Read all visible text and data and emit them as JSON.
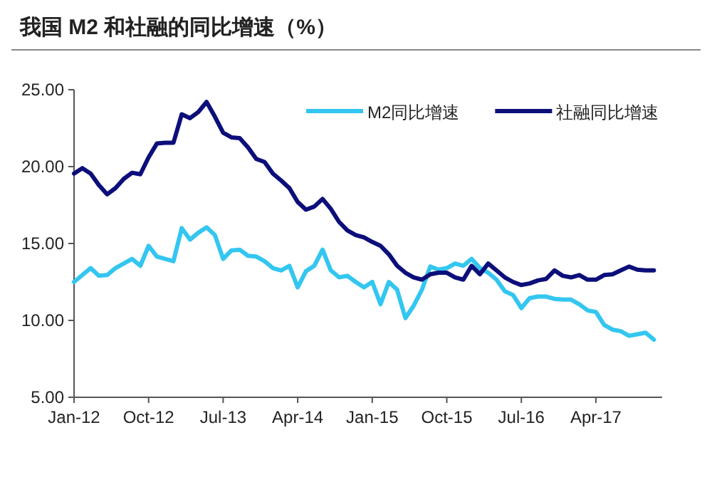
{
  "chart_data": {
    "type": "line",
    "title": "我国 M2 和社融的同比增速（%）",
    "legend": "top right",
    "grid": false,
    "x": [
      "2012-01",
      "2012-02",
      "2012-03",
      "2012-04",
      "2012-05",
      "2012-06",
      "2012-07",
      "2012-08",
      "2012-09",
      "2012-10",
      "2012-11",
      "2012-12",
      "2013-01",
      "2013-02",
      "2013-03",
      "2013-04",
      "2013-05",
      "2013-06",
      "2013-07",
      "2013-08",
      "2013-09",
      "2013-10",
      "2013-11",
      "2013-12",
      "2014-01",
      "2014-02",
      "2014-03",
      "2014-04",
      "2014-05",
      "2014-06",
      "2014-07",
      "2014-08",
      "2014-09",
      "2014-10",
      "2014-11",
      "2014-12",
      "2015-01",
      "2015-02",
      "2015-03",
      "2015-04",
      "2015-05",
      "2015-06",
      "2015-07",
      "2015-08",
      "2015-09",
      "2015-10",
      "2015-11",
      "2015-12",
      "2016-01",
      "2016-02",
      "2016-03",
      "2016-04",
      "2016-05",
      "2016-06",
      "2016-07",
      "2016-08",
      "2016-09",
      "2016-10",
      "2016-11",
      "2016-12",
      "2017-01",
      "2017-02",
      "2017-03",
      "2017-04",
      "2017-05",
      "2017-06",
      "2017-07",
      "2017-08",
      "2017-09",
      "2017-10",
      "2017-11"
    ],
    "series": [
      {
        "name": "M2同比增速",
        "color": "#33c6f0",
        "values": [
          12.5,
          12.95,
          13.4,
          12.9,
          12.95,
          13.4,
          13.7,
          14.0,
          13.55,
          14.85,
          14.15,
          14.0,
          13.85,
          16.0,
          15.25,
          15.7,
          16.05,
          15.55,
          14.0,
          14.55,
          14.6,
          14.2,
          14.15,
          13.85,
          13.4,
          13.25,
          13.55,
          12.15,
          13.2,
          13.55,
          14.6,
          13.25,
          12.8,
          12.9,
          12.5,
          12.15,
          12.5,
          11.05,
          12.5,
          12.0,
          10.15,
          10.95,
          12.0,
          13.5,
          13.3,
          13.4,
          13.7,
          13.55,
          14.0,
          13.4,
          13.1,
          12.65,
          11.9,
          11.65,
          10.8,
          11.45,
          11.55,
          11.55,
          11.4,
          11.35,
          11.35,
          11.05,
          10.65,
          10.55,
          9.7,
          9.4,
          9.3,
          9.0,
          9.1,
          9.2,
          8.75
        ]
      },
      {
        "name": "社融同比增速",
        "color": "#0c0f7a",
        "values": [
          19.55,
          19.9,
          19.55,
          18.8,
          18.2,
          18.6,
          19.2,
          19.6,
          19.5,
          20.6,
          21.5,
          21.55,
          21.55,
          23.4,
          23.15,
          23.55,
          24.2,
          23.25,
          22.2,
          21.9,
          21.85,
          21.25,
          20.5,
          20.3,
          19.55,
          19.1,
          18.6,
          17.7,
          17.2,
          17.4,
          17.9,
          17.25,
          16.4,
          15.85,
          15.55,
          15.4,
          15.1,
          14.85,
          14.3,
          13.55,
          13.1,
          12.8,
          12.65,
          13.0,
          13.1,
          13.1,
          12.8,
          12.65,
          13.55,
          13.0,
          13.7,
          13.25,
          12.8,
          12.5,
          12.3,
          12.4,
          12.6,
          12.7,
          13.25,
          12.9,
          12.8,
          12.95,
          12.65,
          12.65,
          12.95,
          13.0,
          13.25,
          13.5,
          13.3,
          13.25,
          13.25
        ]
      }
    ],
    "xlim": [
      "2012-01",
      "2017-12"
    ],
    "xticks": [
      {
        "value": "2012-01",
        "label": "Jan-12"
      },
      {
        "value": "2012-10",
        "label": "Oct-12"
      },
      {
        "value": "2013-07",
        "label": "Jul-13"
      },
      {
        "value": "2014-04",
        "label": "Apr-14"
      },
      {
        "value": "2015-01",
        "label": "Jan-15"
      },
      {
        "value": "2015-10",
        "label": "Oct-15"
      },
      {
        "value": "2016-07",
        "label": "Jul-16"
      },
      {
        "value": "2017-04",
        "label": "Apr-17"
      }
    ],
    "ylim": [
      5,
      25
    ],
    "yticks": [
      {
        "value": 5,
        "label": "5.00"
      },
      {
        "value": 10,
        "label": "10.00"
      },
      {
        "value": 15,
        "label": "15.00"
      },
      {
        "value": 20,
        "label": "20.00"
      },
      {
        "value": 25,
        "label": "25.00"
      }
    ]
  }
}
